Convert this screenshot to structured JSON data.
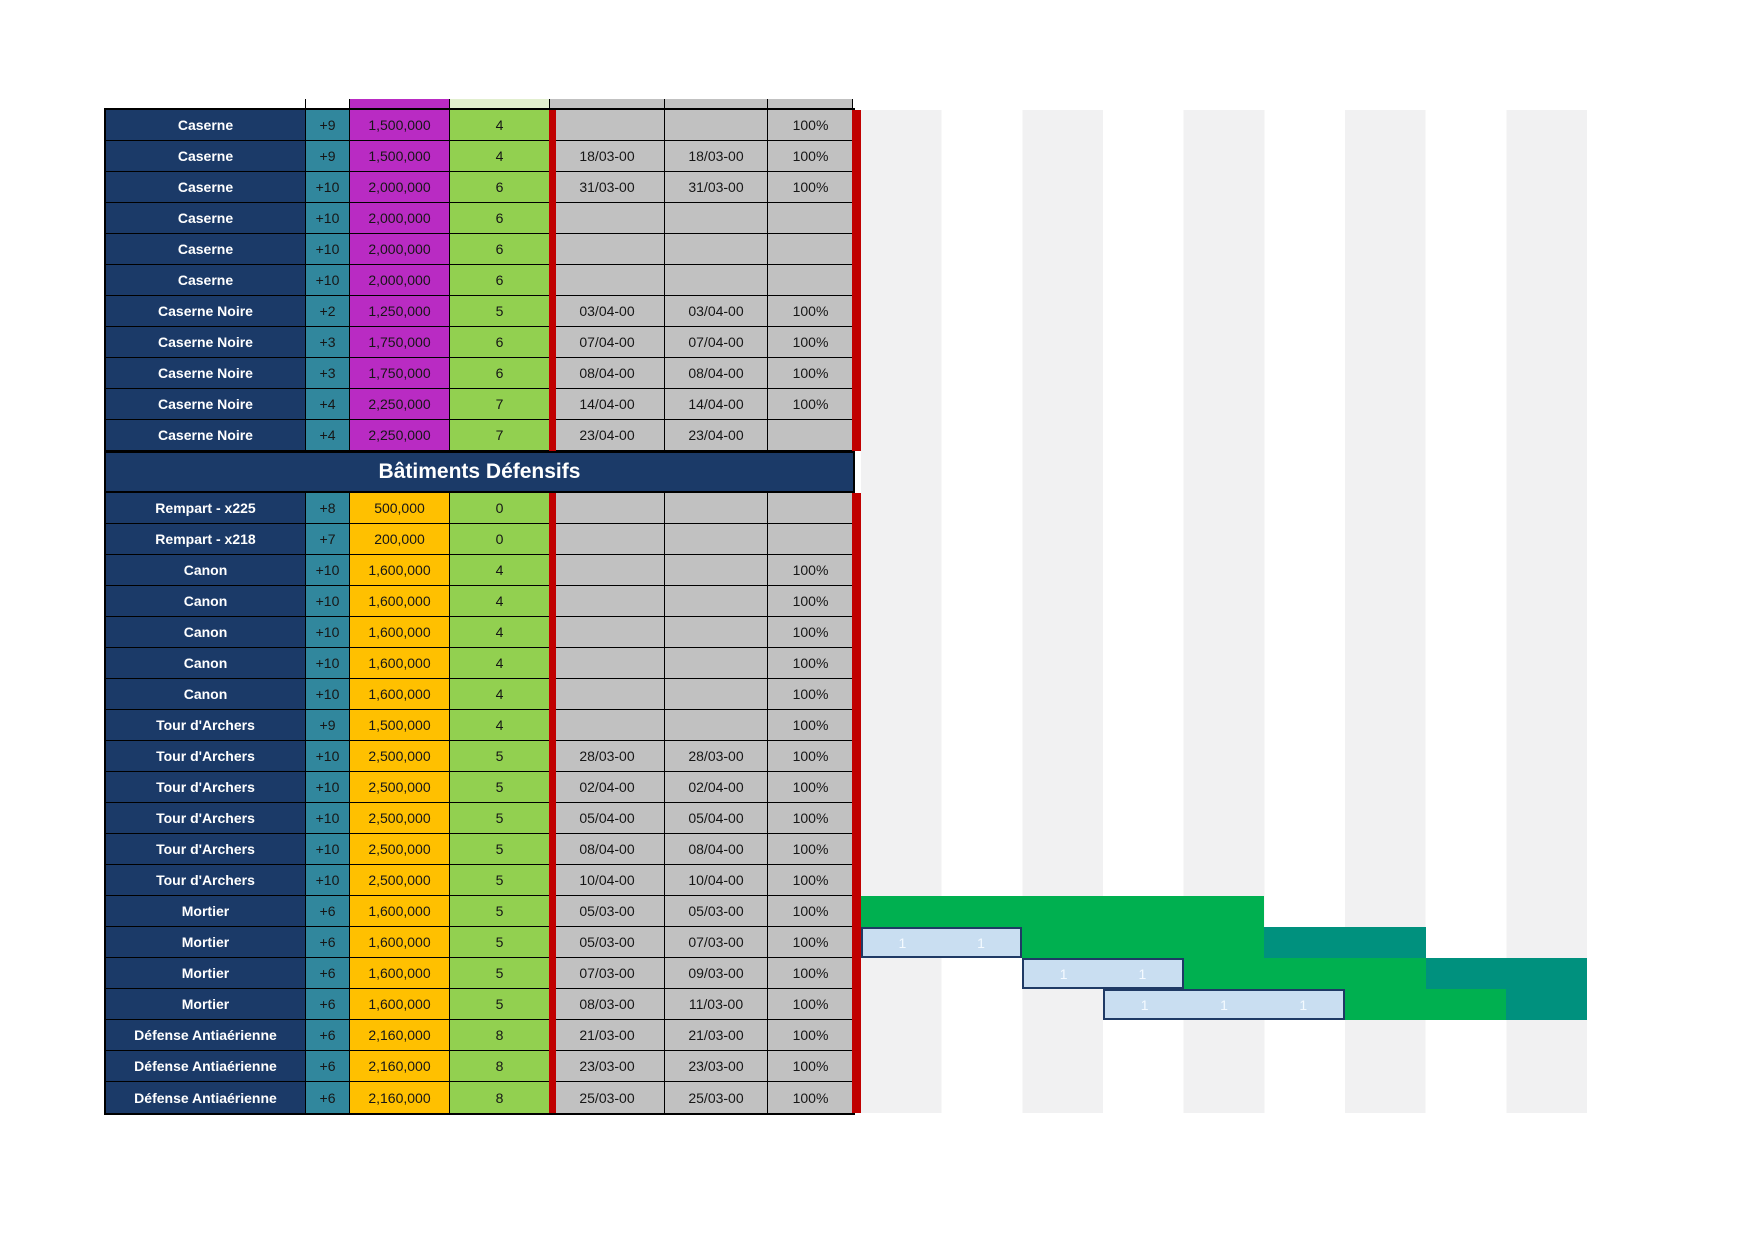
{
  "colors": {
    "navy": "#1B3A68",
    "teal": "#31879D",
    "magenta": "#B92BC3",
    "orange": "#FFC000",
    "green": "#92D050",
    "gray": "#C1C1C1",
    "red": "#C00000",
    "stripe": "#F1F1F2",
    "bar_green": "#00B050",
    "bar_teal": "#00917E",
    "bar_blue": "#C9DEF1",
    "bar_blue_border": "#1F3A65"
  },
  "gantt": {
    "visible_days": 9,
    "day_label": "1"
  },
  "table": {
    "rows": [
      {
        "type": "row",
        "group": "off",
        "name": "Caserne",
        "bonus": "+9",
        "cost": "1,500,000",
        "qty": "4",
        "start": "",
        "end": "",
        "pct": "100%"
      },
      {
        "type": "row",
        "group": "off",
        "name": "Caserne",
        "bonus": "+9",
        "cost": "1,500,000",
        "qty": "4",
        "start": "18/03-00",
        "end": "18/03-00",
        "pct": "100%"
      },
      {
        "type": "row",
        "group": "off",
        "name": "Caserne",
        "bonus": "+10",
        "cost": "2,000,000",
        "qty": "6",
        "start": "31/03-00",
        "end": "31/03-00",
        "pct": "100%"
      },
      {
        "type": "row",
        "group": "off",
        "name": "Caserne",
        "bonus": "+10",
        "cost": "2,000,000",
        "qty": "6",
        "start": "",
        "end": "",
        "pct": ""
      },
      {
        "type": "row",
        "group": "off",
        "name": "Caserne",
        "bonus": "+10",
        "cost": "2,000,000",
        "qty": "6",
        "start": "",
        "end": "",
        "pct": ""
      },
      {
        "type": "row",
        "group": "off",
        "name": "Caserne",
        "bonus": "+10",
        "cost": "2,000,000",
        "qty": "6",
        "start": "",
        "end": "",
        "pct": ""
      },
      {
        "type": "row",
        "group": "off",
        "name": "Caserne Noire",
        "bonus": "+2",
        "cost": "1,250,000",
        "qty": "5",
        "start": "03/04-00",
        "end": "03/04-00",
        "pct": "100%"
      },
      {
        "type": "row",
        "group": "off",
        "name": "Caserne Noire",
        "bonus": "+3",
        "cost": "1,750,000",
        "qty": "6",
        "start": "07/04-00",
        "end": "07/04-00",
        "pct": "100%"
      },
      {
        "type": "row",
        "group": "off",
        "name": "Caserne Noire",
        "bonus": "+3",
        "cost": "1,750,000",
        "qty": "6",
        "start": "08/04-00",
        "end": "08/04-00",
        "pct": "100%"
      },
      {
        "type": "row",
        "group": "off",
        "name": "Caserne Noire",
        "bonus": "+4",
        "cost": "2,250,000",
        "qty": "7",
        "start": "14/04-00",
        "end": "14/04-00",
        "pct": "100%"
      },
      {
        "type": "row",
        "group": "off",
        "name": "Caserne Noire",
        "bonus": "+4",
        "cost": "2,250,000",
        "qty": "7",
        "start": "23/04-00",
        "end": "23/04-00",
        "pct": ""
      },
      {
        "type": "section",
        "label": "Bâtiments Défensifs"
      },
      {
        "type": "row",
        "group": "def",
        "name": "Rempart - x225",
        "bonus": "+8",
        "cost": "500,000",
        "qty": "0",
        "start": "",
        "end": "",
        "pct": ""
      },
      {
        "type": "row",
        "group": "def",
        "name": "Rempart - x218",
        "bonus": "+7",
        "cost": "200,000",
        "qty": "0",
        "start": "",
        "end": "",
        "pct": ""
      },
      {
        "type": "row",
        "group": "def",
        "name": "Canon",
        "bonus": "+10",
        "cost": "1,600,000",
        "qty": "4",
        "start": "",
        "end": "",
        "pct": "100%"
      },
      {
        "type": "row",
        "group": "def",
        "name": "Canon",
        "bonus": "+10",
        "cost": "1,600,000",
        "qty": "4",
        "start": "",
        "end": "",
        "pct": "100%"
      },
      {
        "type": "row",
        "group": "def",
        "name": "Canon",
        "bonus": "+10",
        "cost": "1,600,000",
        "qty": "4",
        "start": "",
        "end": "",
        "pct": "100%"
      },
      {
        "type": "row",
        "group": "def",
        "name": "Canon",
        "bonus": "+10",
        "cost": "1,600,000",
        "qty": "4",
        "start": "",
        "end": "",
        "pct": "100%"
      },
      {
        "type": "row",
        "group": "def",
        "name": "Canon",
        "bonus": "+10",
        "cost": "1,600,000",
        "qty": "4",
        "start": "",
        "end": "",
        "pct": "100%"
      },
      {
        "type": "row",
        "group": "def",
        "name": "Tour d'Archers",
        "bonus": "+9",
        "cost": "1,500,000",
        "qty": "4",
        "start": "",
        "end": "",
        "pct": "100%"
      },
      {
        "type": "row",
        "group": "def",
        "name": "Tour d'Archers",
        "bonus": "+10",
        "cost": "2,500,000",
        "qty": "5",
        "start": "28/03-00",
        "end": "28/03-00",
        "pct": "100%"
      },
      {
        "type": "row",
        "group": "def",
        "name": "Tour d'Archers",
        "bonus": "+10",
        "cost": "2,500,000",
        "qty": "5",
        "start": "02/04-00",
        "end": "02/04-00",
        "pct": "100%"
      },
      {
        "type": "row",
        "group": "def",
        "name": "Tour d'Archers",
        "bonus": "+10",
        "cost": "2,500,000",
        "qty": "5",
        "start": "05/04-00",
        "end": "05/04-00",
        "pct": "100%"
      },
      {
        "type": "row",
        "group": "def",
        "name": "Tour d'Archers",
        "bonus": "+10",
        "cost": "2,500,000",
        "qty": "5",
        "start": "08/04-00",
        "end": "08/04-00",
        "pct": "100%"
      },
      {
        "type": "row",
        "group": "def",
        "name": "Tour d'Archers",
        "bonus": "+10",
        "cost": "2,500,000",
        "qty": "5",
        "start": "10/04-00",
        "end": "10/04-00",
        "pct": "100%"
      },
      {
        "type": "row",
        "group": "def",
        "name": "Mortier",
        "bonus": "+6",
        "cost": "1,600,000",
        "qty": "5",
        "start": "05/03-00",
        "end": "05/03-00",
        "pct": "100%",
        "bar": {
          "segments": [
            {
              "kind": "green",
              "from": 0,
              "span": 5
            }
          ]
        }
      },
      {
        "type": "row",
        "group": "def",
        "name": "Mortier",
        "bonus": "+6",
        "cost": "1,600,000",
        "qty": "5",
        "start": "05/03-00",
        "end": "07/03-00",
        "pct": "100%",
        "bar": {
          "segments": [
            {
              "kind": "blue",
              "from": 0,
              "span": 2,
              "labels": [
                "1",
                "1"
              ]
            },
            {
              "kind": "green",
              "from": 2,
              "span": 3
            },
            {
              "kind": "teal",
              "from": 5,
              "span": 2
            }
          ]
        }
      },
      {
        "type": "row",
        "group": "def",
        "name": "Mortier",
        "bonus": "+6",
        "cost": "1,600,000",
        "qty": "5",
        "start": "07/03-00",
        "end": "09/03-00",
        "pct": "100%",
        "bar": {
          "segments": [
            {
              "kind": "blue",
              "from": 2,
              "span": 2,
              "labels": [
                "1",
                "1"
              ]
            },
            {
              "kind": "green",
              "from": 4,
              "span": 3
            },
            {
              "kind": "teal",
              "from": 7,
              "span": 2
            }
          ]
        }
      },
      {
        "type": "row",
        "group": "def",
        "name": "Mortier",
        "bonus": "+6",
        "cost": "1,600,000",
        "qty": "5",
        "start": "08/03-00",
        "end": "11/03-00",
        "pct": "100%",
        "bar": {
          "segments": [
            {
              "kind": "blue",
              "from": 3,
              "span": 3,
              "labels": [
                "1",
                "1",
                "1"
              ]
            },
            {
              "kind": "green",
              "from": 6,
              "span": 2
            },
            {
              "kind": "teal",
              "from": 8,
              "span": 1
            }
          ]
        }
      },
      {
        "type": "row",
        "group": "def",
        "name": "Défense Antiaérienne",
        "bonus": "+6",
        "cost": "2,160,000",
        "qty": "8",
        "start": "21/03-00",
        "end": "21/03-00",
        "pct": "100%"
      },
      {
        "type": "row",
        "group": "def",
        "name": "Défense Antiaérienne",
        "bonus": "+6",
        "cost": "2,160,000",
        "qty": "8",
        "start": "23/03-00",
        "end": "23/03-00",
        "pct": "100%"
      },
      {
        "type": "row",
        "group": "def",
        "name": "Défense Antiaérienne",
        "bonus": "+6",
        "cost": "2,160,000",
        "qty": "8",
        "start": "25/03-00",
        "end": "25/03-00",
        "pct": "100%"
      }
    ]
  }
}
